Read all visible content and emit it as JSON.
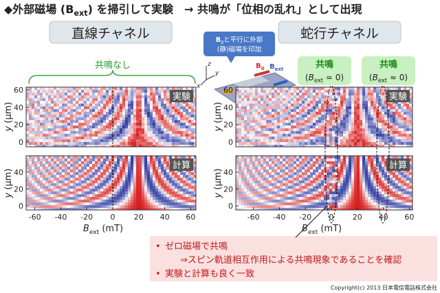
{
  "header": {
    "title": [
      "◆外部磁場 (",
      "B",
      "ext",
      ") を掃引して実験　→ 共鳴が「位相の乱れ」として出現"
    ]
  },
  "panels": [
    {
      "label": "直線チャネル",
      "note": "共鳴なし"
    },
    {
      "label": "蛇行チャネル"
    }
  ],
  "plot_labels": {
    "experiment": "実験",
    "simulation": "計算"
  },
  "axes": {
    "x_label": [
      "B",
      "ext",
      " (mT)"
    ],
    "y_label": [
      "y",
      " (μm)"
    ],
    "x_ticks": [
      -60,
      -40,
      -20,
      0,
      20,
      40,
      60
    ],
    "y_ticks_top": [
      60,
      40,
      20,
      0
    ],
    "y_ticks_bottom": [
      40,
      20,
      0
    ]
  },
  "inset": {
    "note": [
      "B",
      "0",
      "と平行に外部",
      "(静)磁場を印加"
    ],
    "axes": [
      "z",
      "y",
      "x"
    ],
    "fields": [
      [
        "B",
        "0"
      ],
      [
        "B",
        "ext"
      ]
    ]
  },
  "resonances": [
    {
      "title": "共鳴",
      "condition": [
        "(",
        "B",
        "ext",
        " = 0)"
      ]
    },
    {
      "title": "共鳴",
      "condition": [
        "(",
        "B",
        "ext",
        " ≈ 0)"
      ]
    }
  ],
  "bullets": [
    "ゼロ磁場で共鳴",
    "⇒スピン軌道相互作用による共鳴現象であることを確認",
    "実験と計算も良く一致"
  ],
  "footer": "Copyright(c) 2013 日本電信電話株式会社"
}
